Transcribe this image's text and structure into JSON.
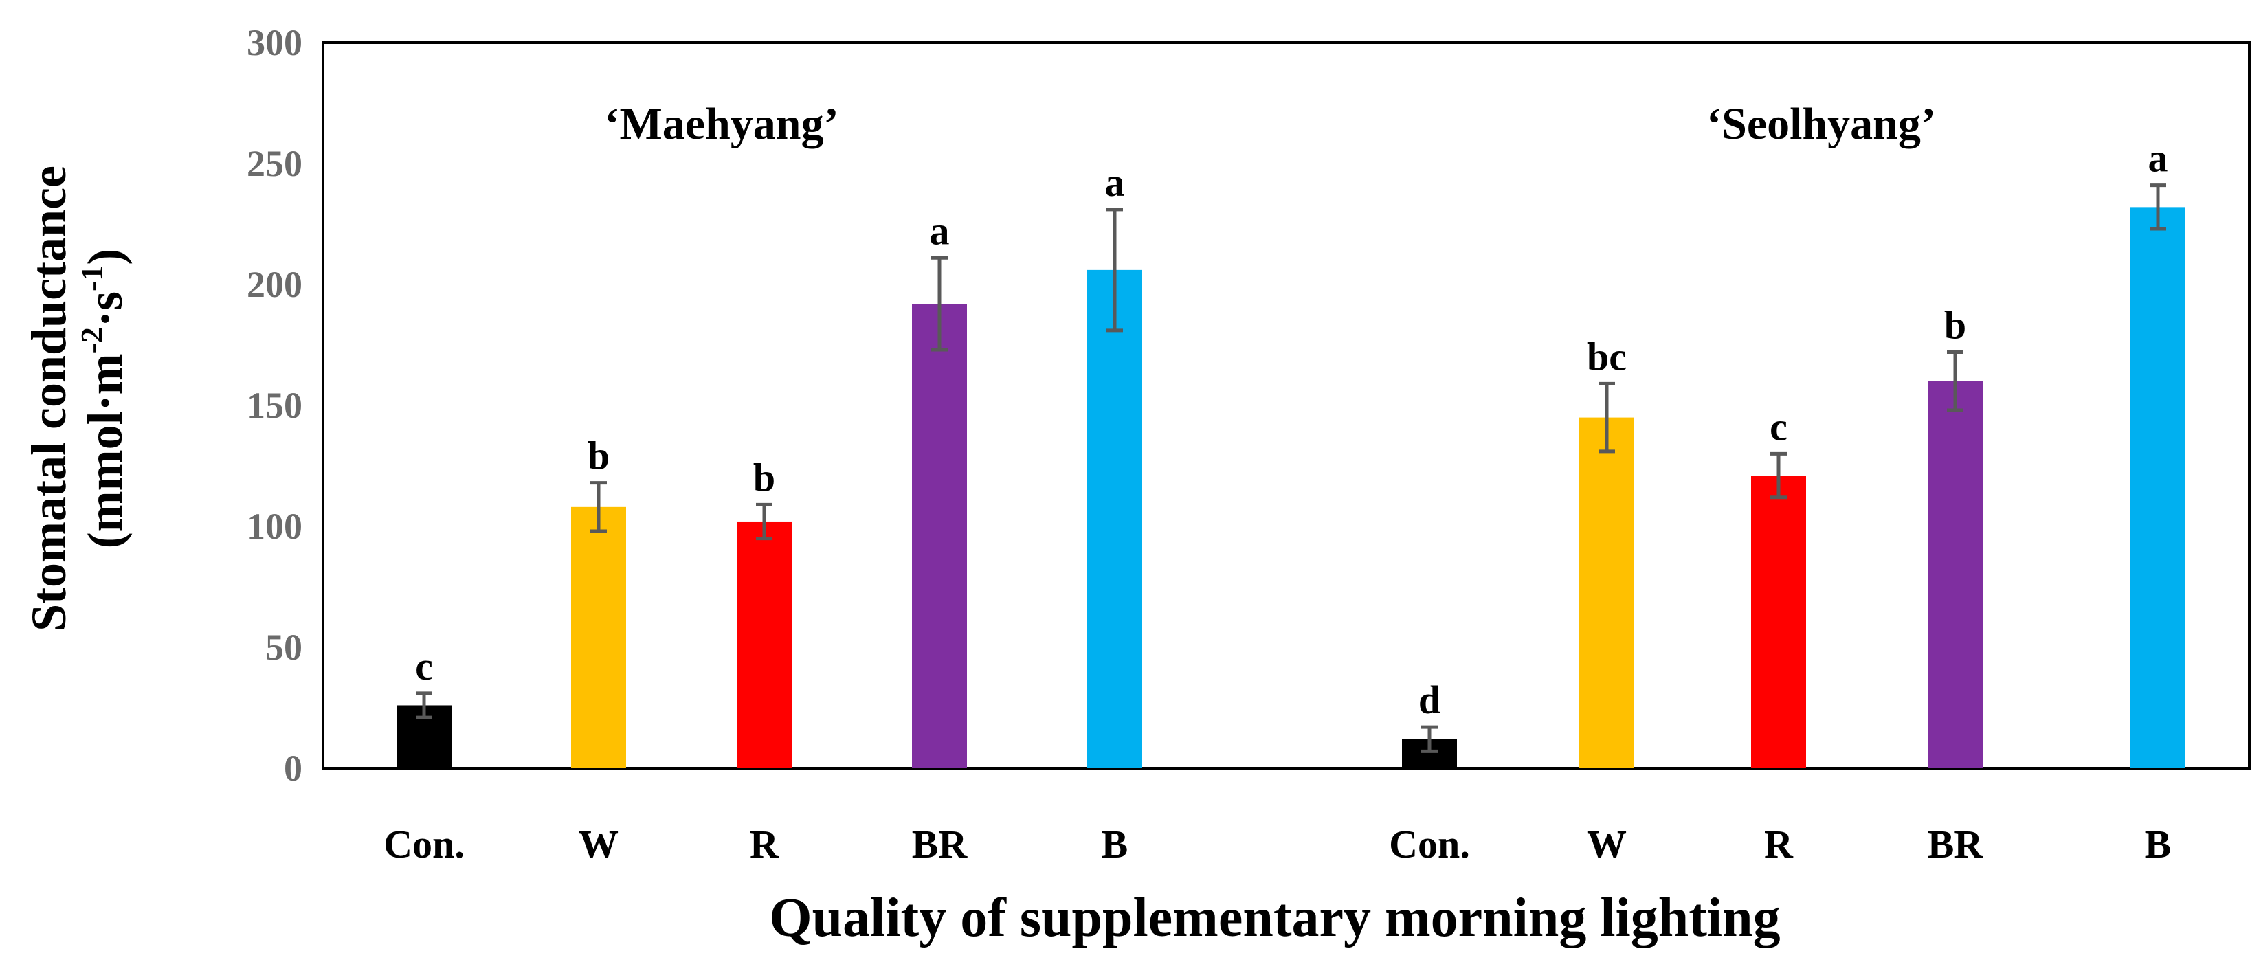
{
  "chart_data": {
    "type": "bar",
    "title": "",
    "xlabel": "Quality of supplementary morning lighting",
    "ylabel_line1": "Stomatal conductance",
    "ylabel_line2_prefix": "(mmol·m",
    "ylabel_sup1": "-2",
    "ylabel_mid": "·s",
    "ylabel_sup2": "-1",
    "ylabel_suffix": ")",
    "ylim": [
      0,
      300
    ],
    "yticks": [
      "0",
      "50",
      "100",
      "150",
      "200",
      "250",
      "300"
    ],
    "groups": [
      {
        "name": "‘Maehyang’",
        "bars": [
          {
            "category": "Con.",
            "value": 26,
            "error": 5,
            "letter": "c",
            "color": "#000000"
          },
          {
            "category": "W",
            "value": 108,
            "error": 10,
            "letter": "b",
            "color": "#FFC000"
          },
          {
            "category": "R",
            "value": 102,
            "error": 7,
            "letter": "b",
            "color": "#FF0000"
          },
          {
            "category": "BR",
            "value": 192,
            "error": 19,
            "letter": "a",
            "color": "#7F2FA0"
          },
          {
            "category": "B",
            "value": 206,
            "error": 25,
            "letter": "a",
            "color": "#00B0F0"
          }
        ]
      },
      {
        "name": "‘Seolhyang’",
        "bars": [
          {
            "category": "Con.",
            "value": 12,
            "error": 5,
            "letter": "d",
            "color": "#000000"
          },
          {
            "category": "W",
            "value": 145,
            "error": 14,
            "letter": "bc",
            "color": "#FFC000"
          },
          {
            "category": "R",
            "value": 121,
            "error": 9,
            "letter": "c",
            "color": "#FF0000"
          },
          {
            "category": "BR",
            "value": 160,
            "error": 12,
            "letter": "b",
            "color": "#7F2FA0"
          },
          {
            "category": "B",
            "value": 232,
            "error": 9,
            "letter": "a",
            "color": "#00B0F0"
          }
        ]
      }
    ]
  }
}
